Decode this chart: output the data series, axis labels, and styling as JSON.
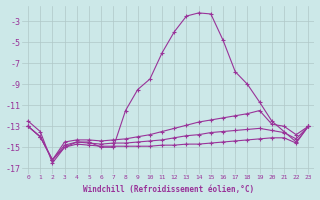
{
  "xlabel": "Windchill (Refroidissement éolien,°C)",
  "background_color": "#cce8e8",
  "grid_color": "#b0c8c8",
  "line_color": "#993399",
  "x": [
    0,
    1,
    2,
    3,
    4,
    5,
    6,
    7,
    8,
    9,
    10,
    11,
    12,
    13,
    14,
    15,
    16,
    17,
    18,
    19,
    20,
    21,
    22,
    23
  ],
  "line1": [
    -12.5,
    -13.5,
    -16.5,
    -15.0,
    -14.5,
    -14.5,
    -15.0,
    -15.0,
    -11.5,
    -9.5,
    -8.5,
    -6.0,
    -4.0,
    -2.5,
    -2.2,
    -2.3,
    -4.8,
    -7.8,
    -9.0,
    -10.7,
    -12.5,
    -13.5,
    -14.5,
    -13.0
  ],
  "line2": [
    -13.0,
    -14.0,
    -16.2,
    -14.5,
    -14.3,
    -14.3,
    -14.4,
    -14.3,
    -14.2,
    -14.0,
    -13.8,
    -13.5,
    -13.2,
    -12.9,
    -12.6,
    -12.4,
    -12.2,
    -12.0,
    -11.8,
    -11.5,
    -12.8,
    -13.0,
    -13.8,
    -13.0
  ],
  "line3": [
    -13.0,
    -14.0,
    -16.2,
    -14.8,
    -14.5,
    -14.6,
    -14.7,
    -14.6,
    -14.6,
    -14.5,
    -14.4,
    -14.3,
    -14.1,
    -13.9,
    -13.8,
    -13.6,
    -13.5,
    -13.4,
    -13.3,
    -13.2,
    -13.4,
    -13.6,
    -14.2,
    -13.0
  ],
  "line4": [
    -13.0,
    -14.0,
    -16.2,
    -15.0,
    -14.7,
    -14.8,
    -14.9,
    -14.9,
    -14.9,
    -14.9,
    -14.9,
    -14.8,
    -14.8,
    -14.7,
    -14.7,
    -14.6,
    -14.5,
    -14.4,
    -14.3,
    -14.2,
    -14.1,
    -14.1,
    -14.6,
    -13.0
  ],
  "ylim": [
    -17.5,
    -1.5
  ],
  "yticks": [
    -17,
    -15,
    -13,
    -11,
    -9,
    -7,
    -5,
    -3
  ],
  "xlim": [
    -0.5,
    23.5
  ],
  "figsize": [
    3.2,
    2.0
  ],
  "dpi": 100
}
